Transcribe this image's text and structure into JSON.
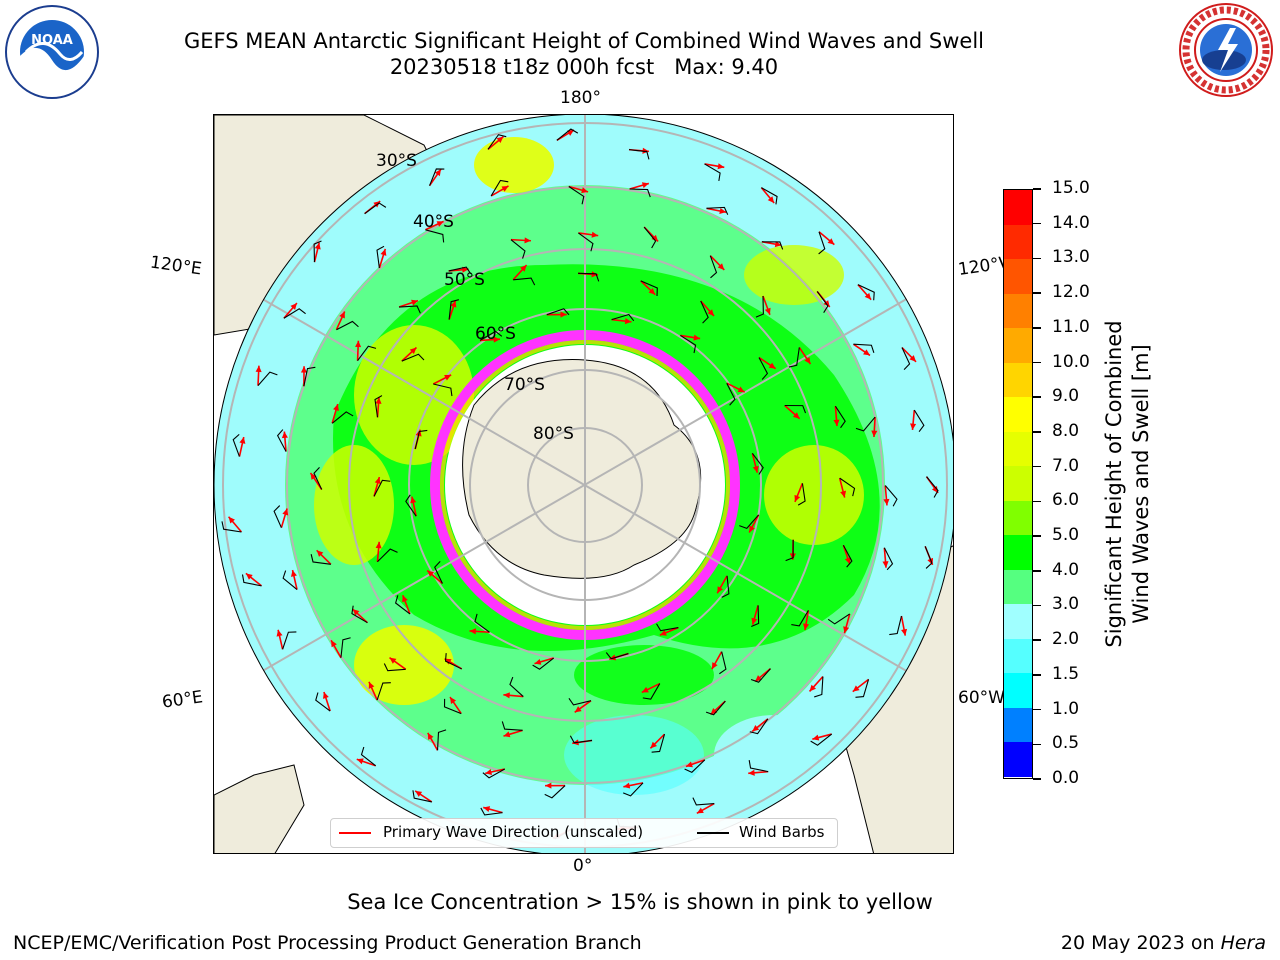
{
  "header": {
    "title_line1": "GEFS MEAN Antarctic Significant Height of Combined Wind Waves and Swell",
    "title_line2": "20230518 t18z 000h fcst   Max: 9.40"
  },
  "logos": {
    "left": {
      "name": "noaa-logo",
      "text": "NOAA",
      "ring_text": "NATIONAL OCEANIC AND ATMOSPHERIC ADMINISTRATION • U.S. DEPARTMENT OF COMMERCE"
    },
    "right": {
      "name": "nws-logo",
      "ring_text": "NATIONAL WEATHER SERVICE"
    }
  },
  "map": {
    "longitude_labels": {
      "top": "180°",
      "bottom": "0°",
      "upper_left": "120°E",
      "upper_right": "120°W",
      "lower_left": "60°E",
      "lower_right": "60°W"
    },
    "latitude_labels": [
      "30°S",
      "40°S",
      "50°S",
      "60°S",
      "70°S",
      "80°S"
    ],
    "colors": {
      "land": "#efecdc",
      "ocean_low": "#9ffcfc",
      "sea_ice": "#ff33ff",
      "arrow": "#ff0000",
      "grid": "#b5b5b5"
    }
  },
  "legend": {
    "primary_wave": "Primary Wave Direction (unscaled)",
    "wind_barbs": "Wind Barbs",
    "primary_wave_color": "#ff0000",
    "wind_barbs_color": "#000000"
  },
  "colorbar": {
    "label_line1": "Significant Height of Combined",
    "label_line2": "Wind Waves and Swell [m]",
    "ticks": [
      "15.0",
      "14.0",
      "13.0",
      "12.0",
      "11.0",
      "10.0",
      "9.0",
      "8.0",
      "7.0",
      "6.0",
      "5.0",
      "4.0",
      "3.0",
      "2.0",
      "1.5",
      "1.0",
      "0.5",
      "0.0"
    ],
    "colors": [
      "#ff0000",
      "#ff2a00",
      "#ff5500",
      "#ff8000",
      "#ffaa00",
      "#ffd500",
      "#ffff00",
      "#e6ff00",
      "#ccff00",
      "#80ff00",
      "#00ff00",
      "#55ff80",
      "#a0ffff",
      "#55ffff",
      "#00ffff",
      "#0080ff",
      "#0000ff"
    ]
  },
  "caption": "Sea Ice Concentration > 15% is shown in pink to yellow",
  "footer": {
    "left": "NCEP/EMC/Verification Post Processing Product Generation Branch",
    "right_date": "20 May 2023 on ",
    "right_host": "Hera"
  }
}
